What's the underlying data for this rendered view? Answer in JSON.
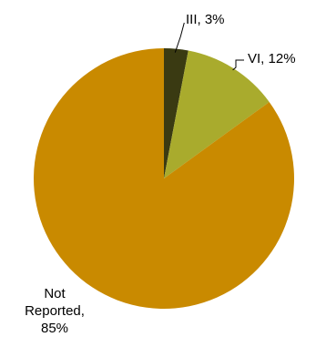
{
  "chart_data": {
    "type": "pie",
    "title": "",
    "slices": [
      {
        "category": "III",
        "value": 3,
        "label": "III, 3%",
        "color": "#3a3a12"
      },
      {
        "category": "VI",
        "value": 12,
        "label": "VI, 12%",
        "color": "#a9ab2d"
      },
      {
        "category": "Not Reported",
        "value": 85,
        "label": "Not Reported, 85%",
        "label_lines": [
          "Not",
          "Reported,",
          "85%"
        ],
        "color": "#c98a00"
      }
    ],
    "start": "12 o'clock",
    "direction": "clockwise",
    "legend": "none"
  }
}
